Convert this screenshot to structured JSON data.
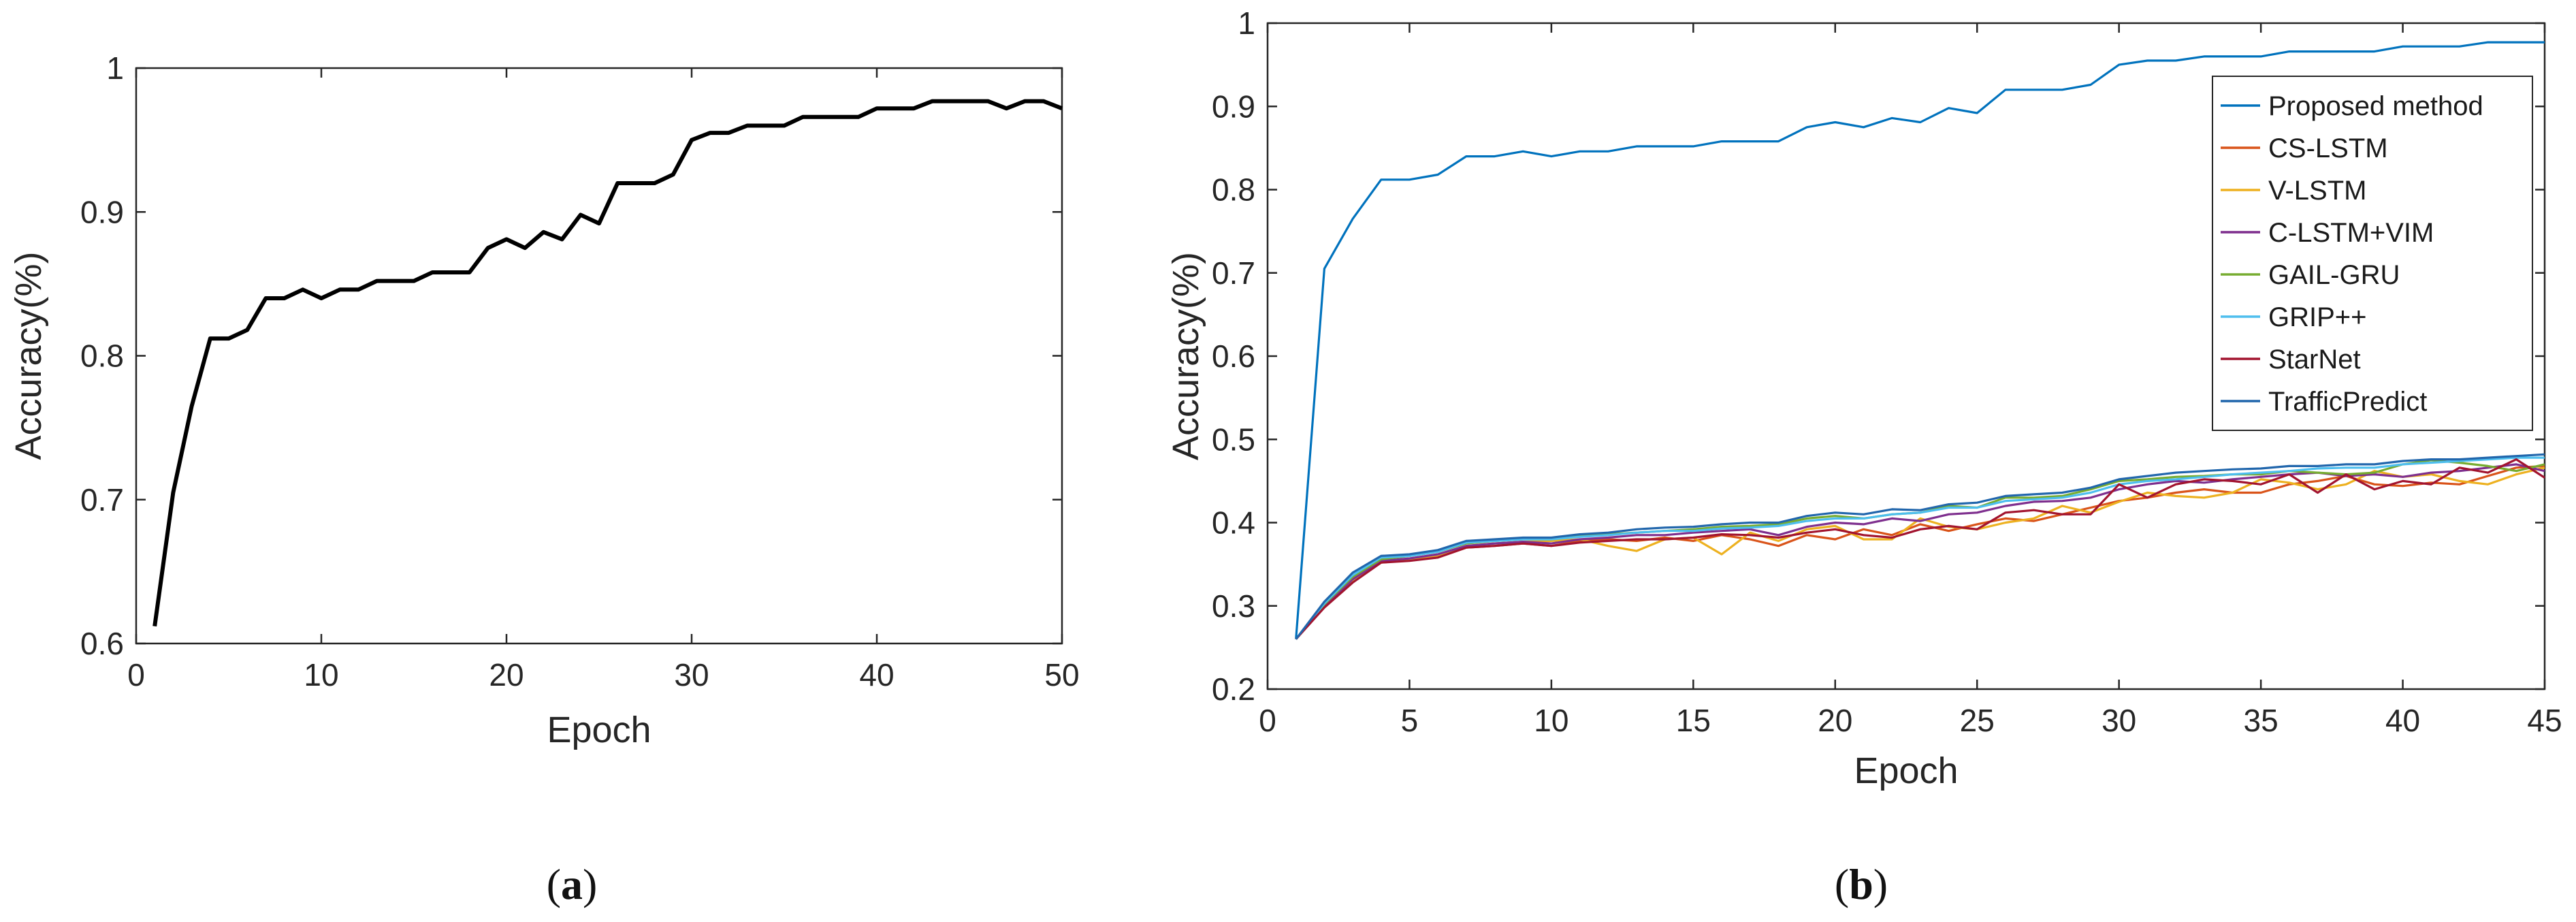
{
  "chart_data": [
    {
      "type": "line",
      "panel_label": {
        "open": "(",
        "letter": "a",
        "close": ")"
      },
      "xlabel": "Epoch",
      "ylabel": "Accuracy(%)",
      "xlim": [
        0,
        50
      ],
      "ylim": [
        0.6,
        1.0
      ],
      "xticks": [
        0,
        10,
        20,
        30,
        40,
        50
      ],
      "yticks": [
        0.6,
        0.7,
        0.8,
        0.9,
        1.0
      ],
      "ytick_labels": [
        "0.6",
        "0.7",
        "0.8",
        "0.9",
        "1"
      ],
      "grid": false,
      "series": [
        {
          "color": "#000000",
          "x": [
            1,
            2,
            3,
            4,
            5,
            6,
            7,
            8,
            9,
            10,
            11,
            12,
            13,
            14,
            15,
            16,
            17,
            18,
            19,
            20,
            21,
            22,
            23,
            24,
            25,
            26,
            27,
            28,
            29,
            30,
            31,
            32,
            33,
            34,
            35,
            36,
            37,
            38,
            39,
            40,
            41,
            42,
            43,
            44,
            45,
            46,
            47,
            48,
            49,
            50
          ],
          "y": [
            0.612,
            0.705,
            0.765,
            0.812,
            0.812,
            0.818,
            0.84,
            0.84,
            0.846,
            0.84,
            0.846,
            0.846,
            0.852,
            0.852,
            0.852,
            0.858,
            0.858,
            0.858,
            0.875,
            0.881,
            0.875,
            0.886,
            0.881,
            0.898,
            0.892,
            0.92,
            0.92,
            0.92,
            0.926,
            0.95,
            0.955,
            0.955,
            0.96,
            0.96,
            0.96,
            0.966,
            0.966,
            0.966,
            0.966,
            0.972,
            0.972,
            0.972,
            0.977,
            0.977,
            0.977,
            0.977,
            0.972,
            0.977,
            0.977,
            0.972
          ]
        }
      ]
    },
    {
      "type": "line",
      "panel_label": {
        "open": "(",
        "letter": "b",
        "close": ")"
      },
      "xlabel": "Epoch",
      "ylabel": "Accuracy(%)",
      "xlim": [
        0,
        45
      ],
      "ylim": [
        0.2,
        1.0
      ],
      "xticks": [
        0,
        5,
        10,
        15,
        20,
        25,
        30,
        35,
        40,
        45
      ],
      "yticks": [
        0.2,
        0.3,
        0.4,
        0.5,
        0.6,
        0.7,
        0.8,
        0.9,
        1.0
      ],
      "ytick_labels": [
        "0.2",
        "0.3",
        "0.4",
        "0.5",
        "0.6",
        "0.7",
        "0.8",
        "0.9",
        "1"
      ],
      "grid": false,
      "legend_position": "top-right",
      "series": [
        {
          "name": "Proposed method",
          "color": "#0072BD",
          "x": [
            1,
            2,
            3,
            4,
            5,
            6,
            7,
            8,
            9,
            10,
            11,
            12,
            13,
            14,
            15,
            16,
            17,
            18,
            19,
            20,
            21,
            22,
            23,
            24,
            25,
            26,
            27,
            28,
            29,
            30,
            31,
            32,
            33,
            34,
            35,
            36,
            37,
            38,
            39,
            40,
            41,
            42,
            43,
            44,
            45
          ],
          "y": [
            0.26,
            0.705,
            0.765,
            0.812,
            0.812,
            0.818,
            0.84,
            0.84,
            0.846,
            0.84,
            0.846,
            0.846,
            0.852,
            0.852,
            0.852,
            0.858,
            0.858,
            0.858,
            0.875,
            0.881,
            0.875,
            0.886,
            0.881,
            0.898,
            0.892,
            0.92,
            0.92,
            0.92,
            0.926,
            0.95,
            0.955,
            0.955,
            0.96,
            0.96,
            0.96,
            0.966,
            0.966,
            0.966,
            0.966,
            0.972,
            0.972,
            0.972,
            0.977,
            0.977,
            0.977
          ]
        },
        {
          "name": "CS-LSTM",
          "color": "#D95319",
          "x": [
            1,
            2,
            3,
            4,
            5,
            6,
            7,
            8,
            9,
            10,
            11,
            12,
            13,
            14,
            15,
            16,
            17,
            18,
            19,
            20,
            21,
            22,
            23,
            24,
            25,
            26,
            27,
            28,
            29,
            30,
            31,
            32,
            33,
            34,
            35,
            36,
            37,
            38,
            39,
            40,
            41,
            42,
            43,
            44,
            45
          ],
          "y": [
            0.26,
            0.3,
            0.33,
            0.352,
            0.355,
            0.358,
            0.37,
            0.372,
            0.375,
            0.372,
            0.378,
            0.38,
            0.378,
            0.382,
            0.378,
            0.385,
            0.38,
            0.372,
            0.385,
            0.38,
            0.392,
            0.385,
            0.398,
            0.39,
            0.398,
            0.405,
            0.402,
            0.41,
            0.418,
            0.426,
            0.43,
            0.436,
            0.44,
            0.436,
            0.436,
            0.446,
            0.45,
            0.456,
            0.446,
            0.444,
            0.448,
            0.446,
            0.456,
            0.466,
            0.468
          ]
        },
        {
          "name": "V-LSTM",
          "color": "#EDB120",
          "x": [
            1,
            2,
            3,
            4,
            5,
            6,
            7,
            8,
            9,
            10,
            11,
            12,
            13,
            14,
            15,
            16,
            17,
            18,
            19,
            20,
            21,
            22,
            23,
            24,
            25,
            26,
            27,
            28,
            29,
            30,
            31,
            32,
            33,
            34,
            35,
            36,
            37,
            38,
            39,
            40,
            41,
            42,
            43,
            44,
            45
          ],
          "y": [
            0.26,
            0.3,
            0.33,
            0.352,
            0.355,
            0.36,
            0.372,
            0.375,
            0.377,
            0.378,
            0.38,
            0.372,
            0.366,
            0.38,
            0.382,
            0.362,
            0.388,
            0.378,
            0.392,
            0.396,
            0.38,
            0.38,
            0.405,
            0.395,
            0.392,
            0.4,
            0.405,
            0.42,
            0.412,
            0.425,
            0.436,
            0.432,
            0.43,
            0.436,
            0.452,
            0.448,
            0.44,
            0.446,
            0.462,
            0.455,
            0.458,
            0.45,
            0.446,
            0.458,
            0.466
          ]
        },
        {
          "name": "C-LSTM+VIM",
          "color": "#7E2F8E",
          "x": [
            1,
            2,
            3,
            4,
            5,
            6,
            7,
            8,
            9,
            10,
            11,
            12,
            13,
            14,
            15,
            16,
            17,
            18,
            19,
            20,
            21,
            22,
            23,
            24,
            25,
            26,
            27,
            28,
            29,
            30,
            31,
            32,
            33,
            34,
            35,
            36,
            37,
            38,
            39,
            40,
            41,
            42,
            43,
            44,
            45
          ],
          "y": [
            0.26,
            0.3,
            0.332,
            0.354,
            0.357,
            0.362,
            0.372,
            0.375,
            0.377,
            0.375,
            0.38,
            0.382,
            0.385,
            0.385,
            0.388,
            0.39,
            0.392,
            0.385,
            0.395,
            0.4,
            0.398,
            0.405,
            0.402,
            0.41,
            0.412,
            0.42,
            0.425,
            0.426,
            0.43,
            0.44,
            0.446,
            0.45,
            0.448,
            0.452,
            0.455,
            0.458,
            0.46,
            0.456,
            0.458,
            0.455,
            0.46,
            0.462,
            0.466,
            0.47,
            0.462
          ]
        },
        {
          "name": "GAIL-GRU",
          "color": "#77AC30",
          "x": [
            1,
            2,
            3,
            4,
            5,
            6,
            7,
            8,
            9,
            10,
            11,
            12,
            13,
            14,
            15,
            16,
            17,
            18,
            19,
            20,
            21,
            22,
            23,
            24,
            25,
            26,
            27,
            28,
            29,
            30,
            31,
            32,
            33,
            34,
            35,
            36,
            37,
            38,
            39,
            40,
            41,
            42,
            43,
            44,
            45
          ],
          "y": [
            0.26,
            0.302,
            0.335,
            0.356,
            0.36,
            0.365,
            0.375,
            0.378,
            0.38,
            0.38,
            0.384,
            0.386,
            0.388,
            0.39,
            0.392,
            0.395,
            0.396,
            0.398,
            0.405,
            0.408,
            0.405,
            0.41,
            0.412,
            0.42,
            0.418,
            0.43,
            0.43,
            0.432,
            0.44,
            0.45,
            0.452,
            0.455,
            0.456,
            0.458,
            0.458,
            0.462,
            0.46,
            0.458,
            0.46,
            0.47,
            0.475,
            0.472,
            0.468,
            0.462,
            0.47
          ]
        },
        {
          "name": "GRIP++",
          "color": "#4DBEEE",
          "x": [
            1,
            2,
            3,
            4,
            5,
            6,
            7,
            8,
            9,
            10,
            11,
            12,
            13,
            14,
            15,
            16,
            17,
            18,
            19,
            20,
            21,
            22,
            23,
            24,
            25,
            26,
            27,
            28,
            29,
            30,
            31,
            32,
            33,
            34,
            35,
            36,
            37,
            38,
            39,
            40,
            41,
            42,
            43,
            44,
            45
          ],
          "y": [
            0.26,
            0.303,
            0.337,
            0.358,
            0.36,
            0.365,
            0.376,
            0.378,
            0.38,
            0.38,
            0.383,
            0.385,
            0.388,
            0.39,
            0.39,
            0.393,
            0.394,
            0.396,
            0.402,
            0.405,
            0.405,
            0.41,
            0.412,
            0.418,
            0.418,
            0.426,
            0.428,
            0.43,
            0.436,
            0.446,
            0.45,
            0.452,
            0.455,
            0.458,
            0.46,
            0.462,
            0.465,
            0.466,
            0.466,
            0.47,
            0.472,
            0.474,
            0.476,
            0.478,
            0.478
          ]
        },
        {
          "name": "StarNet",
          "color": "#A2142F",
          "x": [
            1,
            2,
            3,
            4,
            5,
            6,
            7,
            8,
            9,
            10,
            11,
            12,
            13,
            14,
            15,
            16,
            17,
            18,
            19,
            20,
            21,
            22,
            23,
            24,
            25,
            26,
            27,
            28,
            29,
            30,
            31,
            32,
            33,
            34,
            35,
            36,
            37,
            38,
            39,
            40,
            41,
            42,
            43,
            44,
            45
          ],
          "y": [
            0.26,
            0.298,
            0.328,
            0.352,
            0.354,
            0.358,
            0.37,
            0.372,
            0.375,
            0.372,
            0.376,
            0.378,
            0.38,
            0.38,
            0.382,
            0.386,
            0.385,
            0.382,
            0.388,
            0.392,
            0.385,
            0.382,
            0.392,
            0.396,
            0.392,
            0.412,
            0.415,
            0.41,
            0.41,
            0.446,
            0.43,
            0.446,
            0.452,
            0.45,
            0.446,
            0.458,
            0.436,
            0.458,
            0.44,
            0.45,
            0.446,
            0.466,
            0.46,
            0.476,
            0.454
          ]
        },
        {
          "name": "TrafficPredict",
          "color": "#2166AC",
          "x": [
            1,
            2,
            3,
            4,
            5,
            6,
            7,
            8,
            9,
            10,
            11,
            12,
            13,
            14,
            15,
            16,
            17,
            18,
            19,
            20,
            21,
            22,
            23,
            24,
            25,
            26,
            27,
            28,
            29,
            30,
            31,
            32,
            33,
            34,
            35,
            36,
            37,
            38,
            39,
            40,
            41,
            42,
            43,
            44,
            45
          ],
          "y": [
            0.26,
            0.305,
            0.34,
            0.36,
            0.362,
            0.367,
            0.378,
            0.38,
            0.382,
            0.382,
            0.386,
            0.388,
            0.392,
            0.394,
            0.395,
            0.398,
            0.4,
            0.4,
            0.408,
            0.412,
            0.41,
            0.416,
            0.415,
            0.422,
            0.424,
            0.432,
            0.434,
            0.436,
            0.442,
            0.452,
            0.456,
            0.46,
            0.462,
            0.464,
            0.465,
            0.468,
            0.468,
            0.47,
            0.47,
            0.474,
            0.476,
            0.476,
            0.478,
            0.48,
            0.482
          ]
        }
      ]
    }
  ]
}
